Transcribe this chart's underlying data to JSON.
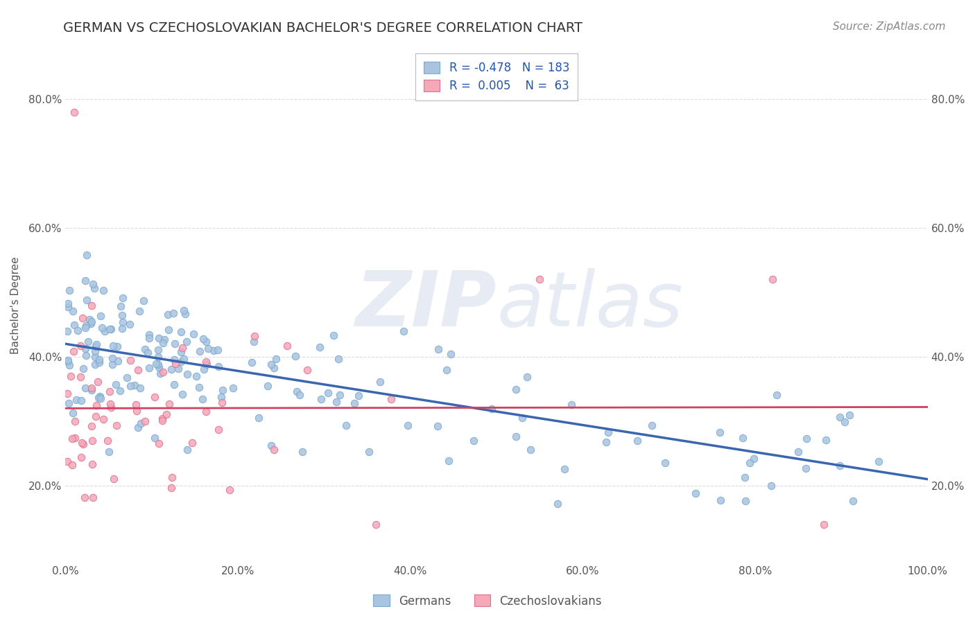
{
  "title": "GERMAN VS CZECHOSLOVAKIAN BACHELOR'S DEGREE CORRELATION CHART",
  "source": "Source: ZipAtlas.com",
  "ylabel": "Bachelor's Degree",
  "legend_german": "Germans",
  "legend_czech": "Czechoslovakians",
  "R_german": -0.478,
  "N_german": 183,
  "R_czech": 0.005,
  "N_czech": 63,
  "color_german": "#a8c4e0",
  "color_german_edge": "#7aaacf",
  "color_czech": "#f4a8b8",
  "color_czech_edge": "#e07090",
  "line_color_german": "#3a65b0",
  "line_color_czech": "#d04060",
  "background_color": "#ffffff",
  "grid_color": "#cccccc",
  "xlim": [
    0.0,
    1.0
  ],
  "ylim": [
    0.08,
    0.88
  ],
  "x_ticks": [
    0.0,
    0.2,
    0.4,
    0.6,
    0.8,
    1.0
  ],
  "y_ticks": [
    0.2,
    0.4,
    0.6,
    0.8
  ],
  "x_tick_labels": [
    "0.0%",
    "20.0%",
    "40.0%",
    "60.0%",
    "80.0%",
    "100.0%"
  ],
  "y_tick_labels": [
    "20.0%",
    "40.0%",
    "60.0%",
    "80.0%"
  ],
  "title_fontsize": 14,
  "label_fontsize": 11,
  "tick_fontsize": 11,
  "legend_fontsize": 12,
  "source_fontsize": 11,
  "german_line_intercept": 0.42,
  "german_line_slope": -0.21,
  "czech_line_intercept": 0.32,
  "czech_line_slope": 0.002
}
